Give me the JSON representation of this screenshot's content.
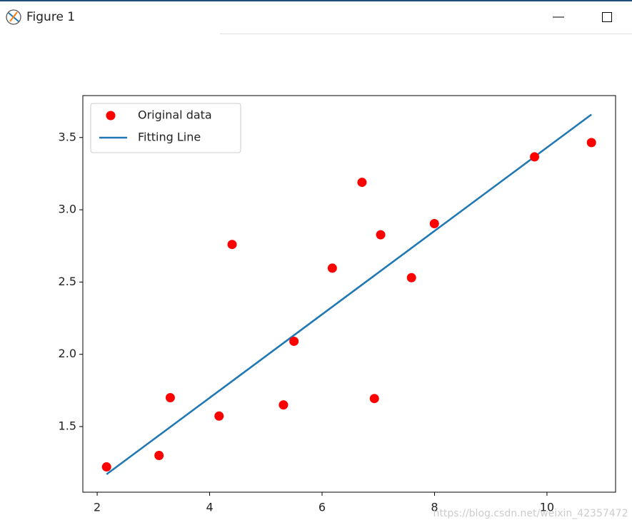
{
  "window": {
    "title": "Figure 1"
  },
  "watermark": "https://blog.csdn.net/weixin_42357472",
  "chart_data": {
    "type": "scatter",
    "xlim": [
      1.745,
      11.22
    ],
    "ylim": [
      1.046,
      3.79
    ],
    "xticks": [
      2,
      4,
      6,
      8,
      10
    ],
    "yticks": [
      {
        "value": 1.5,
        "label": "1.5"
      },
      {
        "value": 2.0,
        "label": "2.0"
      },
      {
        "value": 2.5,
        "label": "2.5"
      },
      {
        "value": 3.0,
        "label": "3.0"
      },
      {
        "value": 3.5,
        "label": "3.5"
      }
    ],
    "legend": "upper left",
    "series": [
      {
        "name": "Original data",
        "color": "#ff0000",
        "kind": "scatter",
        "x": [
          3.3,
          4.4,
          5.5,
          6.71,
          6.93,
          4.168,
          9.779,
          6.182,
          7.59,
          2.167,
          7.042,
          10.791,
          5.313,
          7.997,
          3.1
        ],
        "values": [
          1.7,
          2.76,
          2.09,
          3.19,
          1.694,
          1.573,
          3.366,
          2.596,
          2.53,
          1.221,
          2.827,
          3.465,
          1.65,
          2.904,
          1.3
        ]
      },
      {
        "name": "Fitting Line",
        "color": "#1f77b4",
        "kind": "line",
        "x": [
          3.3,
          4.4,
          5.5,
          6.71,
          6.93,
          4.168,
          9.779,
          6.182,
          7.59,
          2.167,
          7.042,
          10.791,
          5.313,
          7.997,
          3.1
        ],
        "values": [
          1.497,
          1.814,
          2.132,
          2.481,
          2.545,
          1.747,
          3.367,
          2.329,
          2.735,
          1.17,
          2.577,
          3.659,
          2.078,
          2.853,
          1.439
        ]
      }
    ]
  }
}
